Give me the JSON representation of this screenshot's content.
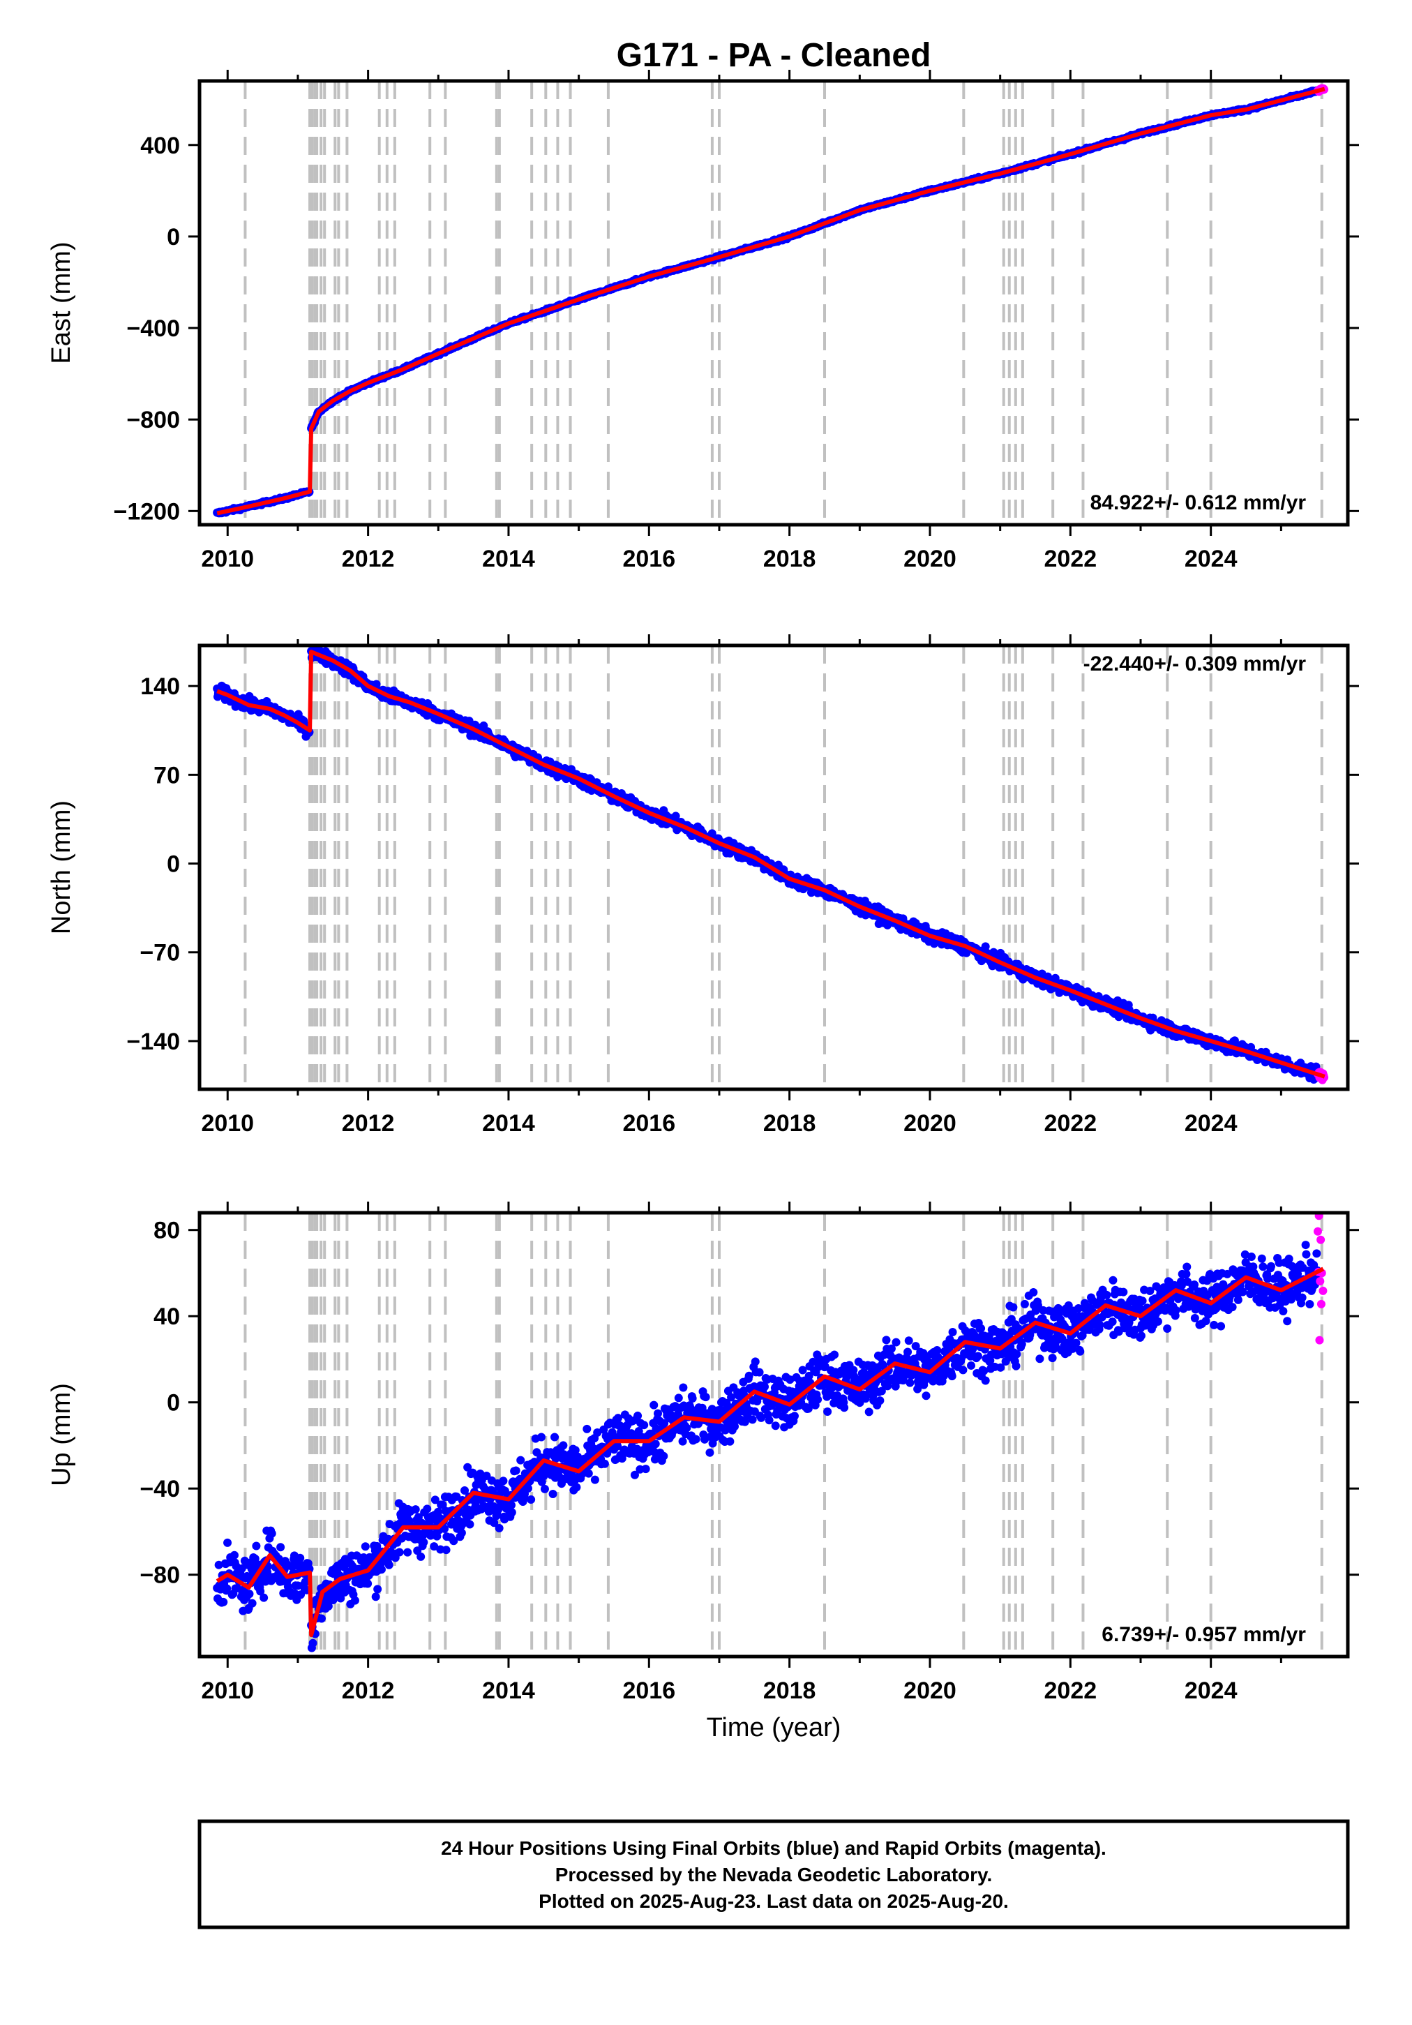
{
  "title": "G171  - PA - Cleaned",
  "xlabel": "Time (year)",
  "footer": {
    "line1": "24 Hour Positions Using Final Orbits (blue) and Rapid Orbits (magenta).",
    "line2": "Processed by the Nevada Geodetic Laboratory.",
    "line3": "Plotted on 2025-Aug-23. Last data on 2025-Aug-20."
  },
  "colors": {
    "final_orbits": "#0000ff",
    "rapid_orbits": "#ff00ff",
    "model": "#ff0000",
    "event_lines": "#c0c0c0"
  },
  "event_years": [
    2010.25,
    2011.17,
    2011.2,
    2011.24,
    2011.27,
    2011.33,
    2011.38,
    2011.53,
    2011.58,
    2011.7,
    2012.16,
    2012.27,
    2012.38,
    2012.88,
    2013.1,
    2013.83,
    2013.87,
    2014.33,
    2014.53,
    2014.7,
    2014.88,
    2015.42,
    2016.9,
    2017.0,
    2018.5,
    2020.48,
    2021.05,
    2021.13,
    2021.22,
    2021.32,
    2021.75,
    2022.18,
    2023.38,
    2024.0,
    2025.58
  ],
  "chart_data": [
    {
      "type": "scatter",
      "ylabel": "East (mm)",
      "xlim": [
        2009.6,
        2025.95
      ],
      "ylim": [
        -1260,
        680
      ],
      "xticks": [
        2010,
        2012,
        2014,
        2016,
        2018,
        2020,
        2022,
        2024
      ],
      "yticks": [
        -1200,
        -800,
        -400,
        0,
        400
      ],
      "ytick_labels": [
        "−1200",
        "−800",
        "−400",
        "0",
        "400"
      ],
      "rate_label": "84.922+/- 0.612 mm/yr",
      "rate_position": "bottom-right",
      "series": [
        {
          "x": [
            2009.85,
            2010.3,
            2010.8,
            2011.17
          ],
          "y": [
            -1210,
            -1180,
            -1145,
            -1115
          ]
        },
        {
          "x": [
            2011.19,
            2011.3,
            2011.5,
            2011.75,
            2012.0,
            2012.5,
            2013.0,
            2014.0,
            2015.0,
            2016.0,
            2017.0,
            2018.0,
            2019.0,
            2020.0,
            2021.0,
            2022.0,
            2023.0,
            2024.0,
            2024.5,
            2025.62
          ],
          "y": [
            -840,
            -765,
            -718,
            -675,
            -640,
            -580,
            -512,
            -380,
            -275,
            -175,
            -90,
            0,
            115,
            200,
            275,
            360,
            450,
            530,
            555,
            645
          ]
        }
      ]
    },
    {
      "type": "scatter",
      "ylabel": "North (mm)",
      "xlim": [
        2009.6,
        2025.95
      ],
      "ylim": [
        -178,
        172
      ],
      "xticks": [
        2010,
        2012,
        2014,
        2016,
        2018,
        2020,
        2022,
        2024
      ],
      "yticks": [
        -140,
        -70,
        0,
        70,
        140
      ],
      "ytick_labels": [
        "−140",
        "−70",
        "0",
        "70",
        "140"
      ],
      "rate_label": "-22.440+/- 0.309 mm/yr",
      "rate_position": "top-right",
      "series": [
        {
          "x": [
            2009.85,
            2010.0,
            2010.3,
            2010.6,
            2010.8,
            2011.0,
            2011.17
          ],
          "y": [
            136,
            133,
            125,
            122,
            117,
            111,
            105
          ]
        },
        {
          "x": [
            2011.19,
            2011.5,
            2011.75,
            2012.0,
            2012.3,
            2012.6,
            2013.0,
            2013.5,
            2014.0,
            2014.5,
            2015.0,
            2015.5,
            2016.0,
            2016.5,
            2017.0,
            2017.5,
            2018.0,
            2018.5,
            2019.0,
            2019.5,
            2020.0,
            2020.5,
            2021.0,
            2021.5,
            2022.0,
            2022.5,
            2023.0,
            2023.5,
            2024.0,
            2024.5,
            2025.0,
            2025.62
          ],
          "y": [
            167,
            160,
            152,
            140,
            132,
            127,
            118,
            106,
            92,
            78,
            67,
            53,
            40,
            29,
            16,
            5,
            -12,
            -21,
            -34,
            -45,
            -57,
            -65,
            -78,
            -90,
            -100,
            -111,
            -122,
            -132,
            -140,
            -148,
            -157,
            -168
          ]
        }
      ]
    },
    {
      "type": "scatter",
      "ylabel": "Up (mm)",
      "xlim": [
        2009.6,
        2025.95
      ],
      "ylim": [
        -118,
        88
      ],
      "xticks": [
        2010,
        2012,
        2014,
        2016,
        2018,
        2020,
        2022,
        2024
      ],
      "yticks": [
        -80,
        -40,
        0,
        40,
        80
      ],
      "ytick_labels": [
        "−80",
        "−40",
        "0",
        "40",
        "80"
      ],
      "rate_label": "6.739+/- 0.957 mm/yr",
      "rate_position": "bottom-right",
      "series": [
        {
          "x": [
            2009.85,
            2010.0,
            2010.3,
            2010.6,
            2010.85,
            2011.17
          ],
          "y": [
            -83,
            -80,
            -86,
            -71,
            -81,
            -79
          ]
        },
        {
          "x": [
            2011.19,
            2011.35,
            2011.6,
            2012.0,
            2012.5,
            2013.0,
            2013.5,
            2014.0,
            2014.5,
            2015.0,
            2015.5,
            2016.0,
            2016.5,
            2017.0,
            2017.5,
            2018.0,
            2018.5,
            2019.0,
            2019.5,
            2020.0,
            2020.5,
            2021.0,
            2021.5,
            2022.0,
            2022.5,
            2023.0,
            2023.5,
            2024.0,
            2024.5,
            2025.0,
            2025.6
          ],
          "y": [
            -108,
            -88,
            -82,
            -78,
            -58,
            -58,
            -42,
            -45,
            -27,
            -32,
            -18,
            -18,
            -7,
            -9,
            5,
            -1,
            12,
            6,
            18,
            14,
            28,
            25,
            37,
            32,
            45,
            40,
            52,
            46,
            58,
            52,
            62
          ]
        }
      ]
    }
  ]
}
